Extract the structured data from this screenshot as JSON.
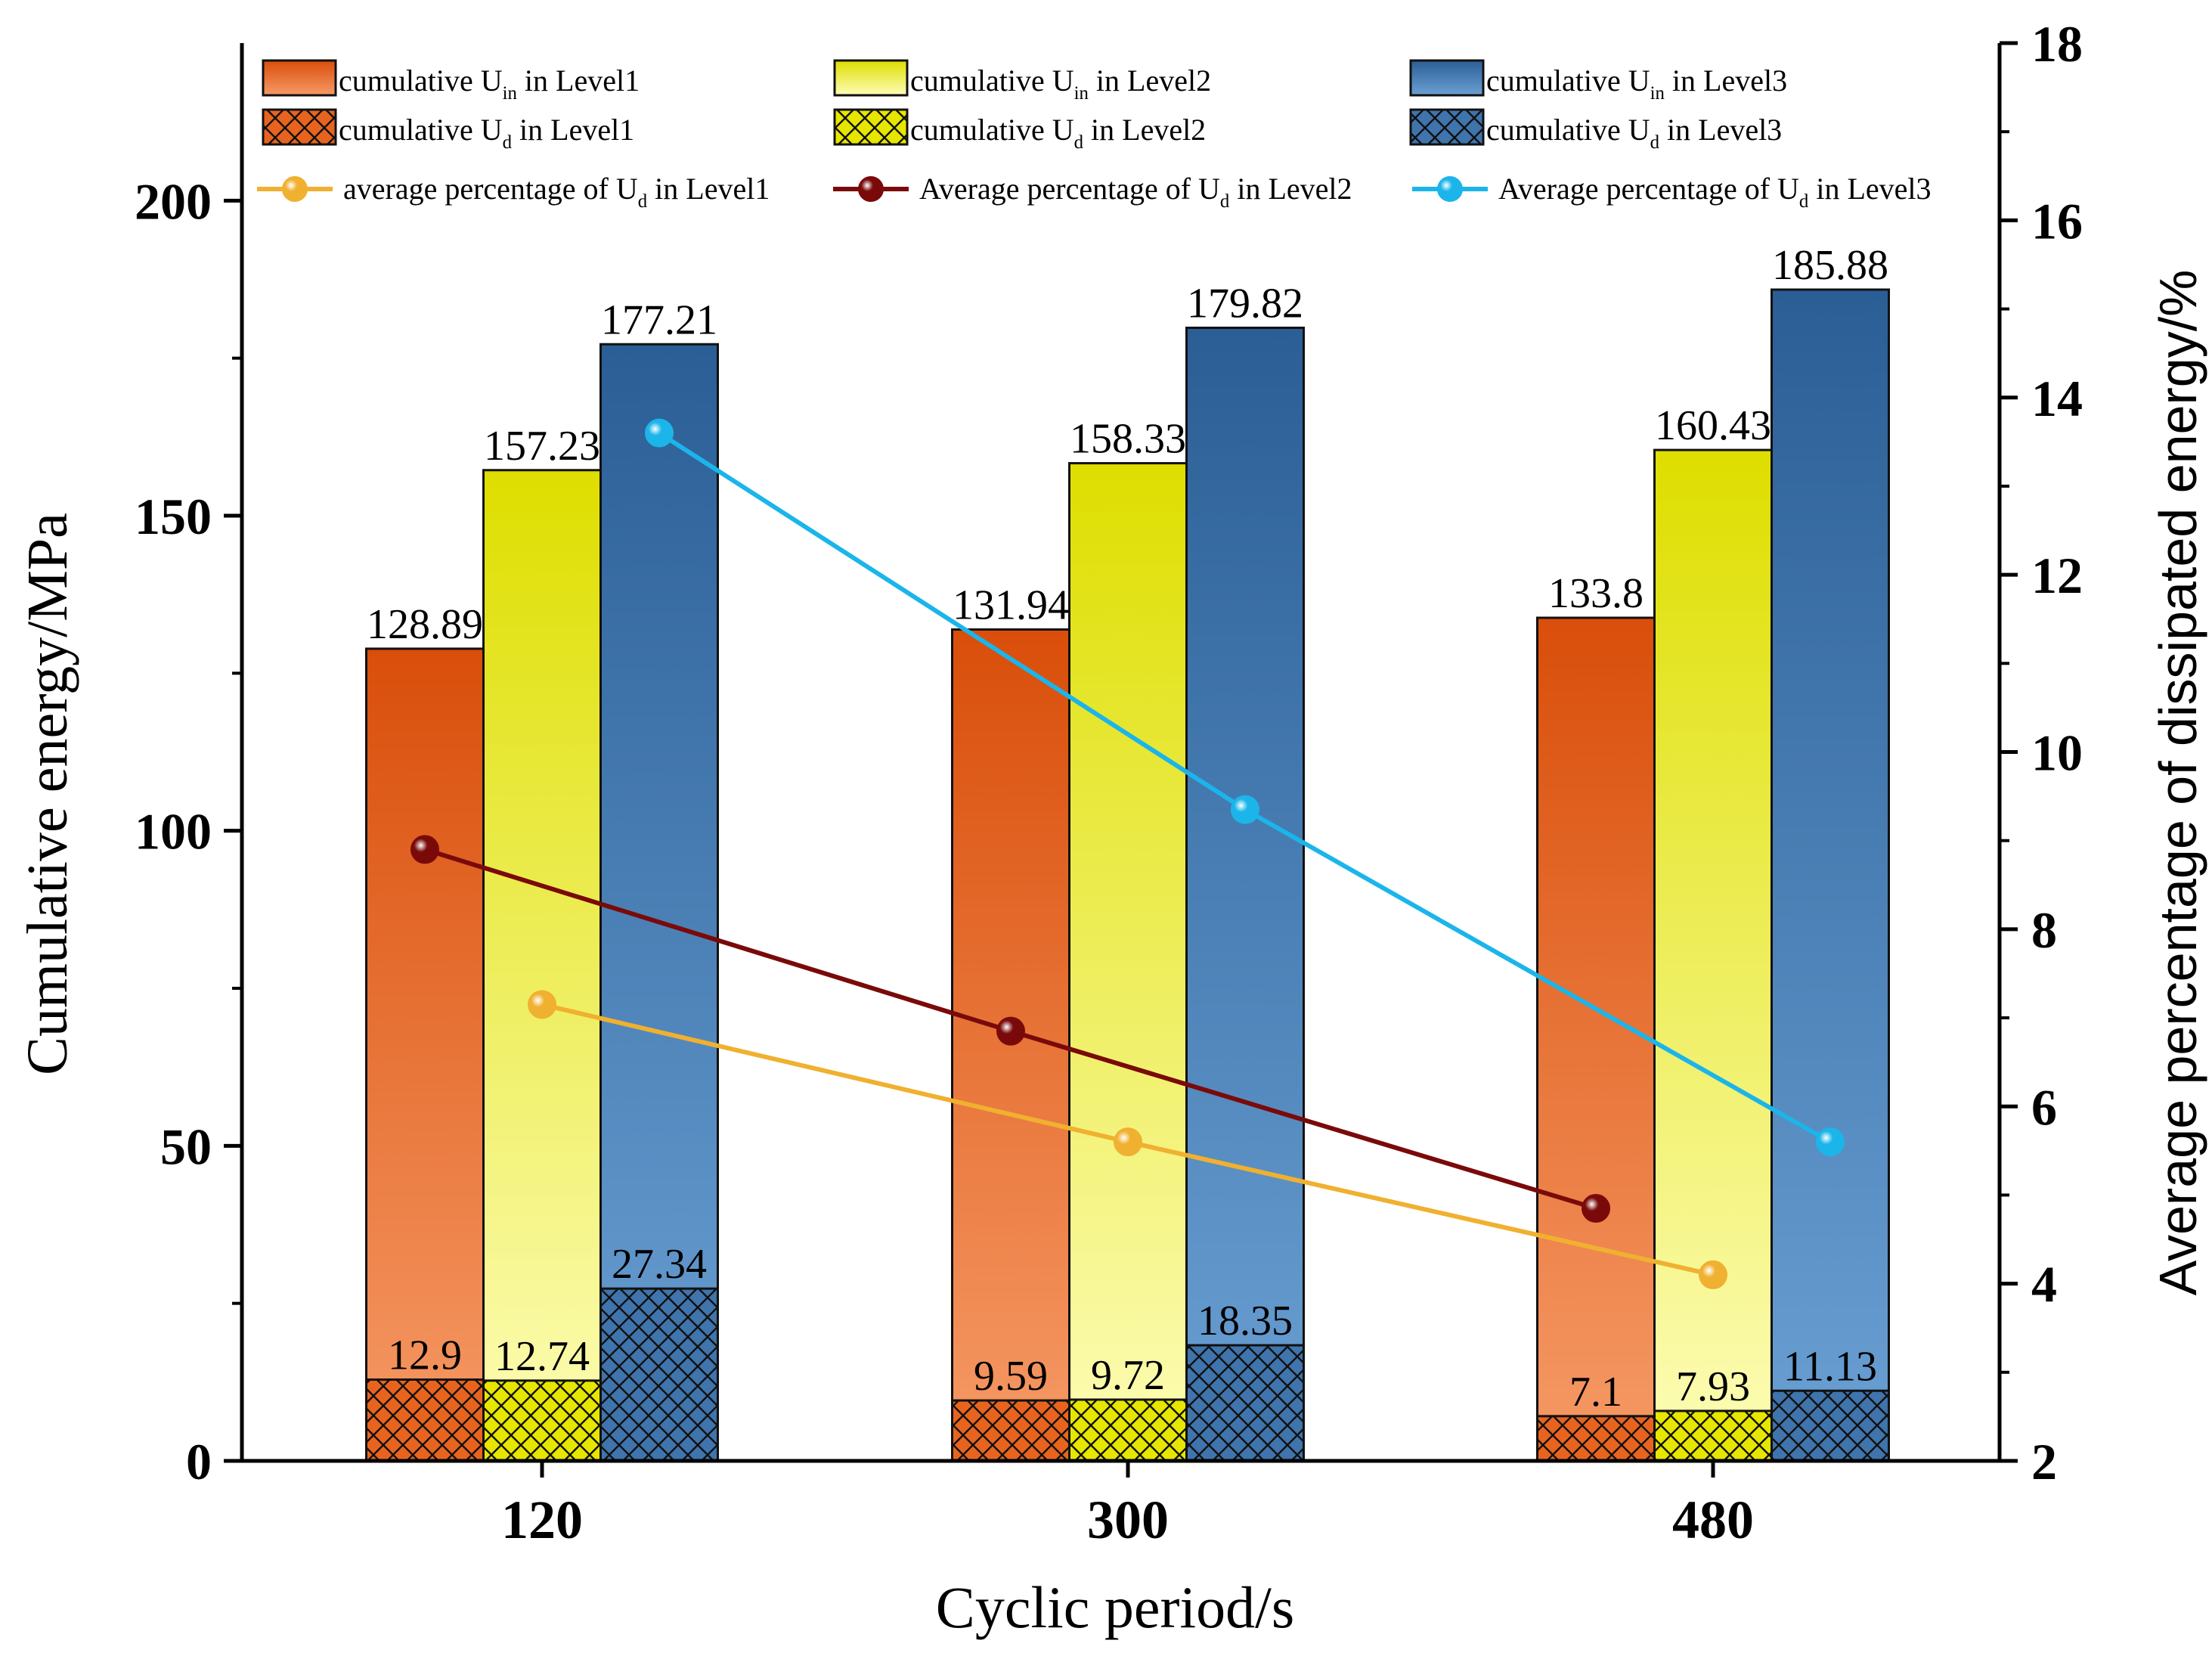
{
  "chart_data": {
    "type": "bar",
    "categories": [
      "120",
      "300",
      "480"
    ],
    "xlabel": "Cyclic period/s",
    "ylabel": "Cumulative energy/MPa",
    "y2label": "Average percentage of dissipated energy/%",
    "ylim": [
      0,
      225
    ],
    "y2lim": [
      2,
      18
    ],
    "yticks": [
      0,
      50,
      100,
      150,
      200
    ],
    "y2ticks": [
      2,
      4,
      6,
      8,
      10,
      12,
      14,
      16,
      18
    ],
    "bar_series": [
      {
        "name": "cumulative U_in in Level1",
        "legend": {
          "pre": "cumulative U",
          "sub": "in",
          "post": " in Level1"
        },
        "values": [
          128.89,
          131.94,
          133.8
        ],
        "labels": [
          "128.89",
          "131.94",
          "133.8"
        ],
        "color_top": "#d94e0a",
        "color_bottom": "#f69a66",
        "pattern": "solid"
      },
      {
        "name": "cumulative U_in in Level2",
        "legend": {
          "pre": "cumulative U",
          "sub": "in",
          "post": " in  Level2"
        },
        "values": [
          157.23,
          158.33,
          160.43
        ],
        "labels": [
          "157.23",
          "158.33",
          "160.43"
        ],
        "color_top": "#dede00",
        "color_bottom": "#fdfdb8",
        "pattern": "solid"
      },
      {
        "name": "cumulative U_in in Level3",
        "legend": {
          "pre": "cumulative U",
          "sub": "in",
          "post": " in  Level3"
        },
        "values": [
          177.21,
          179.82,
          185.88
        ],
        "labels": [
          "177.21",
          "179.82",
          "185.88"
        ],
        "color_top": "#2a5e95",
        "color_bottom": "#6aa0d4",
        "pattern": "solid"
      },
      {
        "name": "cumulative U_d in Level1",
        "legend": {
          "pre": "cumulative U",
          "sub": "d",
          "post": "  in  Level1"
        },
        "values": [
          12.9,
          9.59,
          7.1
        ],
        "labels": [
          "12.9",
          "9.59",
          "7.1"
        ],
        "color_top": "#e8641e",
        "color_bottom": "#e8641e",
        "pattern": "cross"
      },
      {
        "name": "cumulative U_d in Level2",
        "legend": {
          "pre": "cumulative U",
          "sub": "d",
          "post": "  in Level2"
        },
        "values": [
          12.74,
          9.72,
          7.93
        ],
        "labels": [
          "12.74",
          "9.72",
          "7.93"
        ],
        "color_top": "#e6e600",
        "color_bottom": "#e6e600",
        "pattern": "cross"
      },
      {
        "name": "cumulative U_d in Level3",
        "legend": {
          "pre": "cumulative U",
          "sub": "d",
          "post": "  in Level3"
        },
        "values": [
          27.34,
          18.35,
          11.13
        ],
        "labels": [
          "27.34",
          "18.35",
          "11.13"
        ],
        "color_top": "#3f74ac",
        "color_bottom": "#3f74ac",
        "pattern": "cross"
      }
    ],
    "line_series": [
      {
        "name": "average percentage of U_d in Level1",
        "legend": {
          "pre": "average percentage of U",
          "sub": "d",
          "post": " in  Level1"
        },
        "x_offset": 0,
        "values": [
          7.15,
          5.6,
          4.1
        ],
        "color": "#f0b030"
      },
      {
        "name": "Average percentage of U_d in Level2",
        "legend": {
          "pre": "Average percentage of U",
          "sub": "d",
          "post": " in Level2"
        },
        "x_offset": -1,
        "values": [
          8.9,
          6.85,
          4.85
        ],
        "color": "#7a0a0a"
      },
      {
        "name": "Average percentage of U_d in Level3",
        "legend": {
          "pre": "Average percentage of U",
          "sub": "d",
          "post": " in  Level3"
        },
        "x_offset": 1,
        "values": [
          13.6,
          9.35,
          5.6
        ],
        "color": "#1bb5ea"
      }
    ],
    "legend_position": "top, inside plot"
  }
}
